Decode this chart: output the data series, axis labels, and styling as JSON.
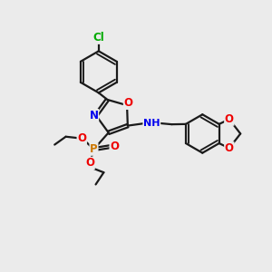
{
  "background_color": "#ebebeb",
  "bond_color": "#1a1a1a",
  "bond_width": 1.6,
  "atom_colors": {
    "N": "#0000ee",
    "O": "#ee0000",
    "P": "#cc7700",
    "Cl": "#00aa00",
    "C": "#1a1a1a",
    "H": "#1a1a1a"
  },
  "font_size_atom": 8.5,
  "figsize": [
    3.0,
    3.0
  ],
  "dpi": 100
}
